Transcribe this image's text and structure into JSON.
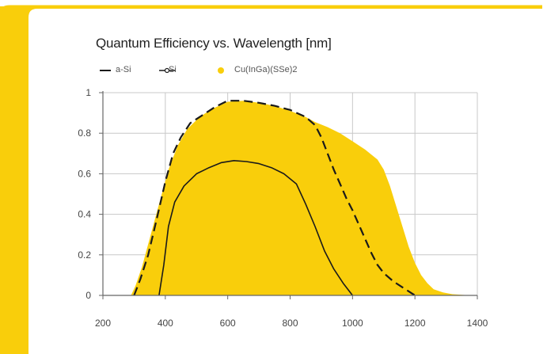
{
  "colors": {
    "accent": "#F9CE0B",
    "fill": "#F9CE0B",
    "axis": "#666666",
    "grid": "#C8C8C8",
    "line": "#1a1a1a"
  },
  "chart_data": {
    "type": "area",
    "title": "Quantum Efficiency vs. Wavelength [nm]",
    "xlabel": "",
    "ylabel": "",
    "xlim": [
      200,
      1400
    ],
    "ylim": [
      0,
      1
    ],
    "x_ticks": [
      "200",
      "400",
      "600",
      "800",
      "1000",
      "1200",
      "1400"
    ],
    "y_ticks": [
      "0",
      "0.2",
      "0.4",
      "0.6",
      "0.8",
      "1"
    ],
    "grid": true,
    "legend_position": "top-left",
    "series": [
      {
        "name": "a-Si",
        "style": "dashed-line",
        "points": [
          [
            300,
            0
          ],
          [
            320,
            0.08
          ],
          [
            345,
            0.2
          ],
          [
            370,
            0.36
          ],
          [
            400,
            0.56
          ],
          [
            425,
            0.7
          ],
          [
            450,
            0.78
          ],
          [
            480,
            0.85
          ],
          [
            520,
            0.89
          ],
          [
            560,
            0.93
          ],
          [
            600,
            0.96
          ],
          [
            650,
            0.96
          ],
          [
            700,
            0.95
          ],
          [
            750,
            0.935
          ],
          [
            800,
            0.915
          ],
          [
            850,
            0.88
          ],
          [
            880,
            0.84
          ],
          [
            900,
            0.78
          ],
          [
            920,
            0.7
          ],
          [
            940,
            0.62
          ],
          [
            960,
            0.55
          ],
          [
            980,
            0.48
          ],
          [
            1000,
            0.42
          ],
          [
            1020,
            0.35
          ],
          [
            1040,
            0.28
          ],
          [
            1060,
            0.21
          ],
          [
            1080,
            0.15
          ],
          [
            1100,
            0.11
          ],
          [
            1130,
            0.07
          ],
          [
            1160,
            0.04
          ],
          [
            1190,
            0.01
          ],
          [
            1200,
            0
          ]
        ]
      },
      {
        "name": "Si",
        "style": "solid-line",
        "points": [
          [
            380,
            0
          ],
          [
            395,
            0.15
          ],
          [
            410,
            0.34
          ],
          [
            430,
            0.46
          ],
          [
            460,
            0.54
          ],
          [
            500,
            0.6
          ],
          [
            540,
            0.63
          ],
          [
            580,
            0.655
          ],
          [
            620,
            0.665
          ],
          [
            660,
            0.66
          ],
          [
            700,
            0.65
          ],
          [
            740,
            0.63
          ],
          [
            780,
            0.6
          ],
          [
            820,
            0.55
          ],
          [
            850,
            0.45
          ],
          [
            880,
            0.34
          ],
          [
            910,
            0.22
          ],
          [
            940,
            0.13
          ],
          [
            970,
            0.06
          ],
          [
            990,
            0.02
          ],
          [
            1000,
            0
          ]
        ]
      },
      {
        "name": "Cu(InGa)(SSe)2",
        "style": "filled-area",
        "points": [
          [
            290,
            0
          ],
          [
            305,
            0.05
          ],
          [
            325,
            0.14
          ],
          [
            350,
            0.28
          ],
          [
            380,
            0.45
          ],
          [
            410,
            0.62
          ],
          [
            440,
            0.74
          ],
          [
            470,
            0.82
          ],
          [
            510,
            0.88
          ],
          [
            550,
            0.92
          ],
          [
            600,
            0.955
          ],
          [
            650,
            0.96
          ],
          [
            700,
            0.95
          ],
          [
            750,
            0.935
          ],
          [
            800,
            0.91
          ],
          [
            850,
            0.88
          ],
          [
            880,
            0.855
          ],
          [
            920,
            0.83
          ],
          [
            960,
            0.8
          ],
          [
            1000,
            0.76
          ],
          [
            1040,
            0.72
          ],
          [
            1080,
            0.67
          ],
          [
            1100,
            0.62
          ],
          [
            1120,
            0.54
          ],
          [
            1140,
            0.44
          ],
          [
            1160,
            0.34
          ],
          [
            1180,
            0.24
          ],
          [
            1200,
            0.16
          ],
          [
            1220,
            0.1
          ],
          [
            1240,
            0.06
          ],
          [
            1260,
            0.03
          ],
          [
            1290,
            0.015
          ],
          [
            1320,
            0.006
          ],
          [
            1360,
            0.002
          ],
          [
            1380,
            0
          ]
        ]
      }
    ]
  }
}
